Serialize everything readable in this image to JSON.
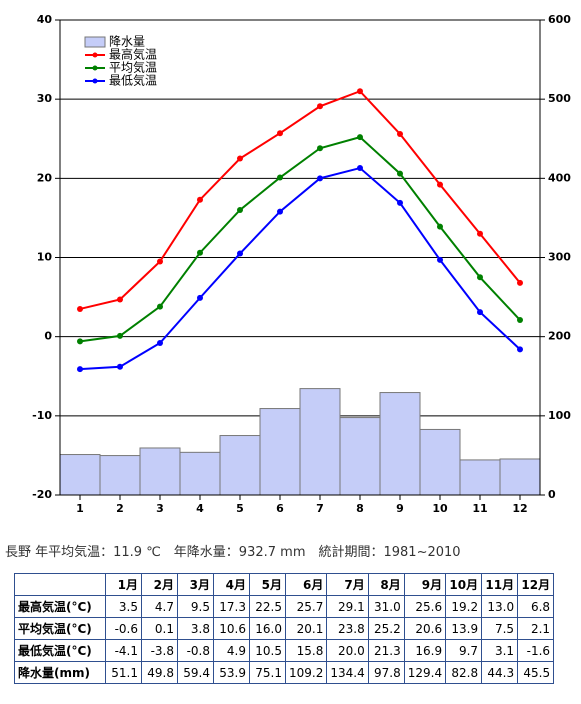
{
  "chart_data": {
    "type": "combo",
    "categories": [
      "1",
      "2",
      "3",
      "4",
      "5",
      "6",
      "7",
      "8",
      "9",
      "10",
      "11",
      "12"
    ],
    "ylim": [
      -20,
      40
    ],
    "yticks": [
      -20,
      -10,
      0,
      10,
      20,
      30,
      40
    ],
    "y2lim": [
      0,
      600
    ],
    "y2ticks": [
      0,
      100,
      200,
      300,
      400,
      500,
      600
    ],
    "grid": true,
    "legend": "upper left",
    "series": [
      {
        "name": "降水量",
        "type": "bar",
        "axis": "y2",
        "color": "#c5cdf8",
        "values": [
          51.1,
          49.8,
          59.4,
          53.9,
          75.1,
          109.2,
          134.4,
          97.8,
          129.4,
          82.8,
          44.3,
          45.5
        ]
      },
      {
        "name": "最高気温",
        "type": "line",
        "color": "#ff0000",
        "values": [
          3.5,
          4.7,
          9.5,
          17.3,
          22.5,
          25.7,
          29.1,
          31.0,
          25.6,
          19.2,
          13.0,
          6.8
        ]
      },
      {
        "name": "平均気温",
        "type": "line",
        "color": "#008000",
        "values": [
          -0.6,
          0.1,
          3.8,
          10.6,
          16.0,
          20.1,
          23.8,
          25.2,
          20.6,
          13.9,
          7.5,
          2.1
        ]
      },
      {
        "name": "最低気温",
        "type": "line",
        "color": "#0000ff",
        "values": [
          -4.1,
          -3.8,
          -0.8,
          4.9,
          10.5,
          15.8,
          20.0,
          21.3,
          16.9,
          9.7,
          3.1,
          -1.6
        ]
      }
    ]
  },
  "summary": "長野 年平均気温：11.9 ℃　年降水量：932.7 mm　統計期間：1981~2010",
  "table": {
    "header": [
      "1月",
      "2月",
      "3月",
      "4月",
      "5月",
      "6月",
      "7月",
      "8月",
      "9月",
      "10月",
      "11月",
      "12月"
    ],
    "rows": [
      [
        "最高気温(°C)",
        "3.5",
        "4.7",
        "9.5",
        "17.3",
        "22.5",
        "25.7",
        "29.1",
        "31.0",
        "25.6",
        "19.2",
        "13.0",
        "6.8"
      ],
      [
        "平均気温(°C)",
        "-0.6",
        "0.1",
        "3.8",
        "10.6",
        "16.0",
        "20.1",
        "23.8",
        "25.2",
        "20.6",
        "13.9",
        "7.5",
        "2.1"
      ],
      [
        "最低気温(°C)",
        "-4.1",
        "-3.8",
        "-0.8",
        "4.9",
        "10.5",
        "15.8",
        "20.0",
        "21.3",
        "16.9",
        "9.7",
        "3.1",
        "-1.6"
      ],
      [
        "降水量(mm)",
        "51.1",
        "49.8",
        "59.4",
        "53.9",
        "75.1",
        "109.2",
        "134.4",
        "97.8",
        "129.4",
        "82.8",
        "44.3",
        "45.5"
      ]
    ]
  }
}
